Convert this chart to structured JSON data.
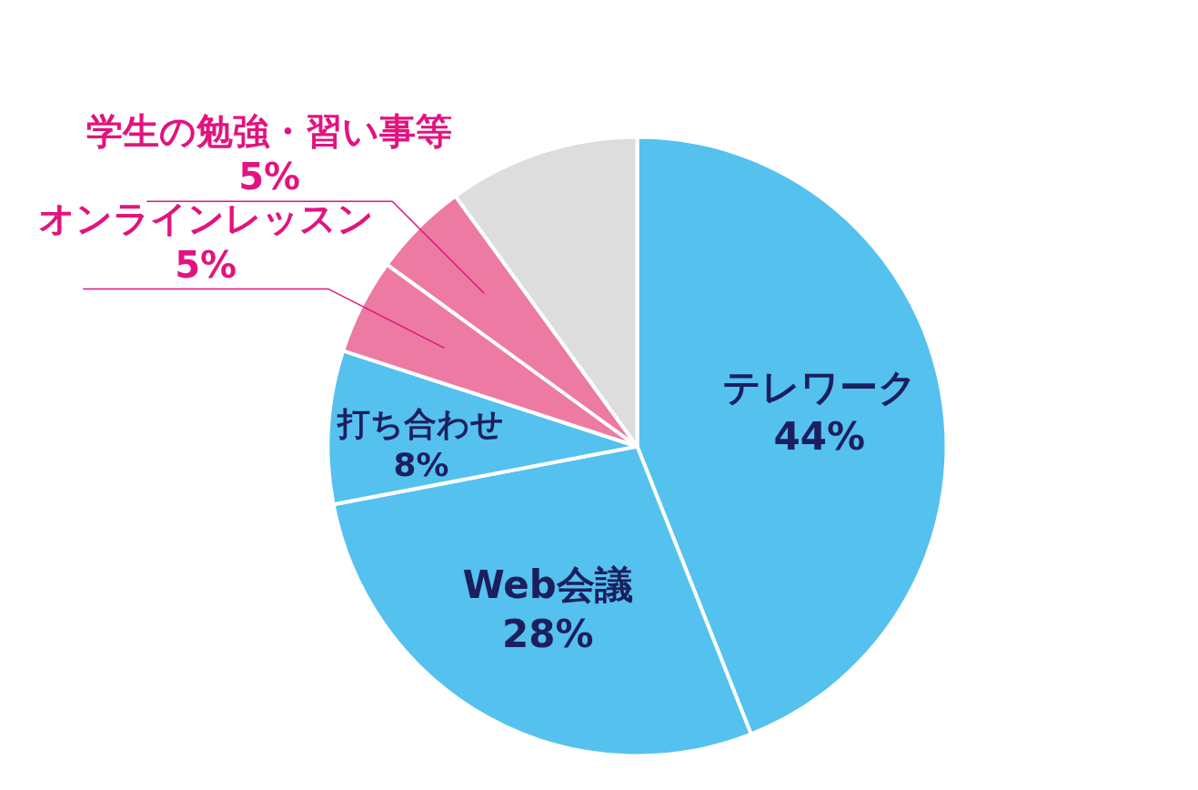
{
  "chart_data": {
    "type": "pie",
    "categories": [
      "テレワーク",
      "Web会議",
      "打ち合わせ",
      "オンラインレッスン",
      "学生の勉強・習い事等",
      null
    ],
    "values": [
      44,
      28,
      8,
      5,
      5,
      10
    ],
    "colors": [
      "#55c1ef",
      "#55c1ef",
      "#55c1ef",
      "#ec7aa2",
      "#ec7aa2",
      "#dddddd"
    ],
    "value_labels": [
      "44%",
      "28%",
      "8%",
      "5%",
      "5%",
      null
    ]
  }
}
